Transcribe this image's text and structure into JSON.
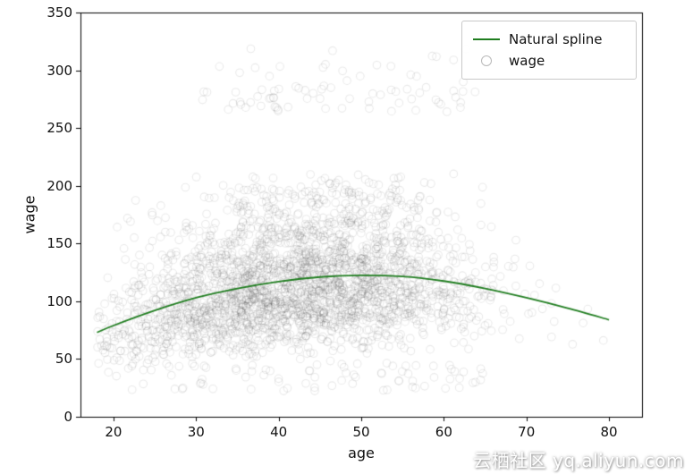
{
  "figure": {
    "background": "#ffffff"
  },
  "chart_data": {
    "type": "scatter",
    "title": "",
    "xlabel": "age",
    "ylabel": "wage",
    "xlim": [
      16,
      84
    ],
    "ylim": [
      0,
      350
    ],
    "xticks": [
      20,
      30,
      40,
      50,
      60,
      70,
      80
    ],
    "yticks": [
      0,
      50,
      100,
      150,
      200,
      250,
      300,
      350
    ],
    "grid": false,
    "frame": true,
    "legend": {
      "position": "upper right",
      "items": [
        {
          "label": "Natural spline",
          "type": "line",
          "color": "#1f7d1f"
        },
        {
          "label": "wage",
          "type": "open-circle",
          "color": "#b9b9b9"
        }
      ]
    },
    "series": [
      {
        "name": "Natural spline",
        "type": "line",
        "color": "#1f7d1f",
        "width": 1.8,
        "x": [
          18,
          20,
          25,
          30,
          35,
          40,
          45,
          50,
          55,
          60,
          65,
          70,
          75,
          80
        ],
        "y": [
          73,
          79,
          92,
          103,
          111,
          117,
          121,
          122.5,
          121.5,
          117.5,
          111,
          103,
          94,
          84
        ]
      },
      {
        "name": "wage",
        "type": "scatter",
        "marker": "open-circle",
        "color": "#000000",
        "alpha": 0.09,
        "radius": 4.3,
        "generator": {
          "seed": 20,
          "main": {
            "count": 2600,
            "age_mean": 42,
            "age_sd": 11.5,
            "age_min": 18,
            "age_max": 80,
            "wage_log_sd": 0.3,
            "wage_scale": 0.97,
            "wage_min": 21,
            "wage_max": 214
          },
          "low_band": {
            "count": 70,
            "age_min": 20,
            "age_max": 65,
            "wage_min": 22,
            "wage_max": 47
          },
          "high_band": {
            "count": 80,
            "age_min": 30,
            "age_max": 64,
            "wage_min": 264,
            "wage_max": 320,
            "dense_max": 286,
            "dense_frac": 0.72
          }
        }
      }
    ]
  },
  "watermark": {
    "text": "云栖社区 yq.aliyun.com"
  }
}
